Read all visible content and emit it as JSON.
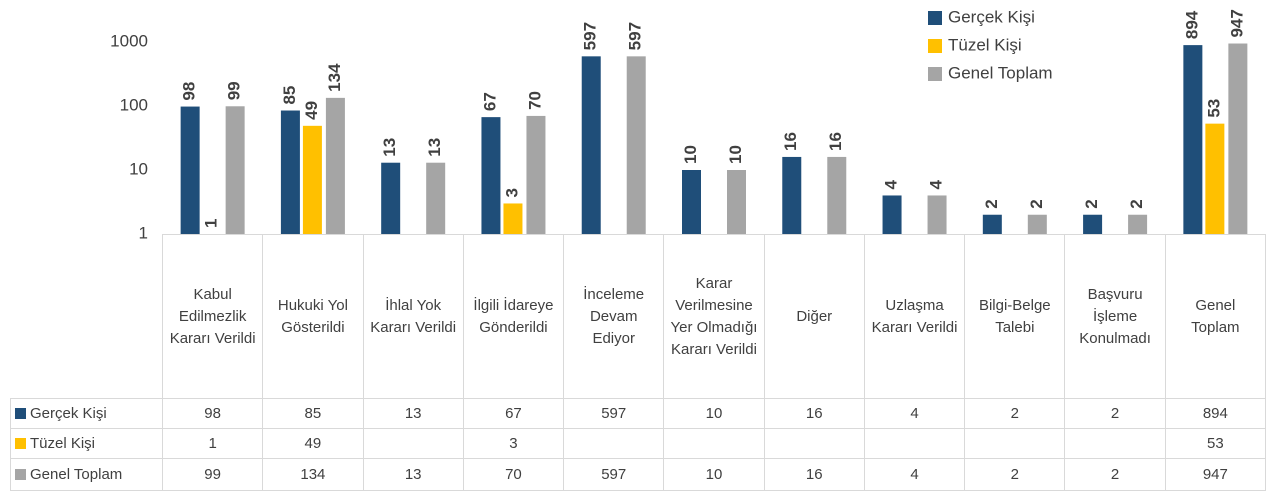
{
  "chart_data": {
    "type": "bar",
    "log": true,
    "grid": false,
    "legend": "top-right",
    "categories": [
      "Kabul Edilmezlik Kararı Verildi",
      "Hukuki Yol Gösterildi",
      "İhlal Yok Kararı Verildi",
      "İlgili İdareye Gönderildi",
      "İnceleme Devam Ediyor",
      "Karar Verilmesine Yer Olmadığı Kararı Verildi",
      "Diğer",
      "Uzlaşma Kararı Verildi",
      "Bilgi-Belge Talebi",
      "Başvuru İşleme Konulmadı",
      "Genel Toplam"
    ],
    "series": [
      {
        "name": "Gerçek Kişi",
        "color": "#1f4e79",
        "values": [
          98,
          85,
          13,
          67,
          597,
          10,
          16,
          4,
          2,
          2,
          894
        ]
      },
      {
        "name": "Tüzel Kişi",
        "color": "#ffc000",
        "values": [
          1,
          49,
          null,
          3,
          null,
          null,
          null,
          null,
          null,
          null,
          53
        ]
      },
      {
        "name": "Genel Toplam",
        "color": "#a5a5a5",
        "values": [
          99,
          134,
          13,
          70,
          597,
          10,
          16,
          4,
          2,
          2,
          947
        ]
      }
    ],
    "ylim": [
      1,
      1000
    ],
    "yticks": [
      1,
      10,
      100,
      1000
    ]
  }
}
